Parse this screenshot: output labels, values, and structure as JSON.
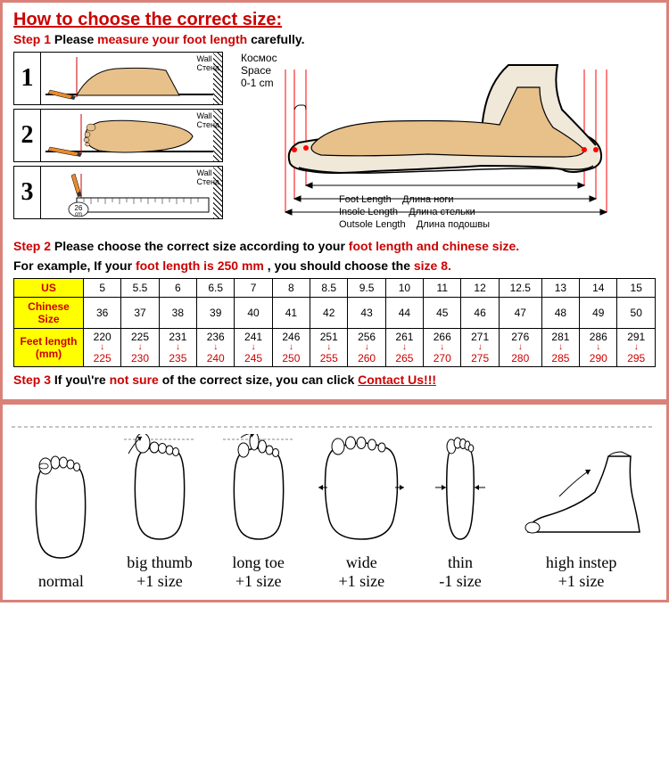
{
  "colors": {
    "border": "#d8827a",
    "red": "#cc0000",
    "yellow": "#ffff00",
    "foot_fill": "#e8c08a",
    "foot_stroke": "#000000",
    "pencil_orange": "#e88b2e",
    "shoe_fill": "#f0e8d8",
    "shoe_stroke": "#000000",
    "guide_red": "#ff0000"
  },
  "header": {
    "title": "How to choose the correct size:",
    "step1_label": "Step 1",
    "step1_text_a": "Please ",
    "step1_text_b": "measure your foot length",
    "step1_text_c": " carefully."
  },
  "diagram": {
    "wall_en": "Wall",
    "wall_ru": "Стена",
    "space_ru": "Космос",
    "space_en": "Space",
    "space_val": "0-1 cm",
    "ruler_val": "26",
    "ruler_unit": "cm",
    "foot_length_en": "Foot Length",
    "foot_length_ru": "Длина ноги",
    "insole_length_en": "Insole Length",
    "insole_length_ru": "Длина стельки",
    "outsole_length_en": "Outsole Length",
    "outsole_length_ru": "Длина подошвы",
    "step_numbers": [
      "1",
      "2",
      "3"
    ]
  },
  "step2": {
    "label": "Step 2",
    "text_a": "Please choose the correct size according to your ",
    "text_b": "foot length and chinese size.",
    "example_a": "For example, If your ",
    "example_b": "foot length is 250 mm",
    "example_c": " , you should choose the ",
    "example_d": "size 8."
  },
  "table": {
    "row_headers": [
      "US",
      "Chinese Size",
      "Feet length (mm)"
    ],
    "us": [
      "5",
      "5.5",
      "6",
      "6.5",
      "7",
      "8",
      "8.5",
      "9.5",
      "10",
      "11",
      "12",
      "12.5",
      "13",
      "14",
      "15"
    ],
    "cn": [
      "36",
      "37",
      "38",
      "39",
      "40",
      "41",
      "42",
      "43",
      "44",
      "45",
      "46",
      "47",
      "48",
      "49",
      "50"
    ],
    "feet_upper": [
      "220",
      "225",
      "231",
      "236",
      "241",
      "246",
      "251",
      "256",
      "261",
      "266",
      "271",
      "276",
      "281",
      "286",
      "291"
    ],
    "feet_lower": [
      "225",
      "230",
      "235",
      "240",
      "245",
      "250",
      "255",
      "260",
      "265",
      "270",
      "275",
      "280",
      "285",
      "290",
      "295"
    ]
  },
  "step3": {
    "label": "Step 3",
    "text_a": "If you\\'re ",
    "text_b": "not sure",
    "text_c": " of the correct size, you can click ",
    "link": "Contact Us!!!"
  },
  "foot_types": [
    {
      "label": "normal",
      "adj": ""
    },
    {
      "label": "big thumb",
      "adj": "+1 size"
    },
    {
      "label": "long toe",
      "adj": "+1 size"
    },
    {
      "label": "wide",
      "adj": "+1 size"
    },
    {
      "label": "thin",
      "adj": "-1 size"
    },
    {
      "label": "high instep",
      "adj": "+1 size"
    }
  ]
}
